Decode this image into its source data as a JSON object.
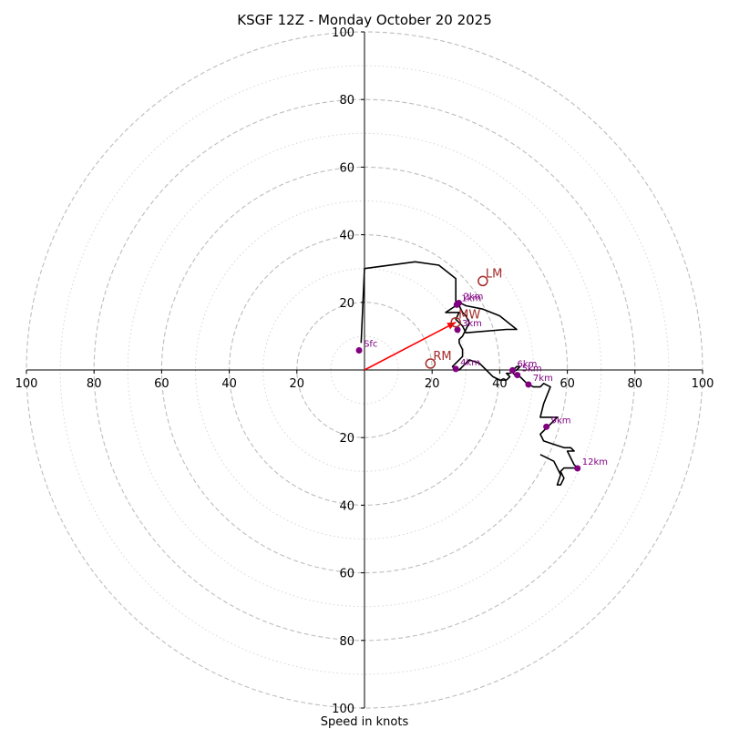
{
  "chart_data": {
    "type": "hodograph",
    "title": "KSGF 12Z - Monday October 20 2025",
    "xlabel": "Speed in knots",
    "max_speed": 100,
    "ring_major_step": 20,
    "ring_minor_step": 10,
    "tick_labels": {
      "top": [
        "20",
        "40",
        "60",
        "80",
        "100"
      ],
      "bottom": [
        "20",
        "40",
        "60",
        "80",
        "100"
      ],
      "left": [
        "20",
        "40",
        "60",
        "80",
        "100"
      ],
      "right": [
        "20",
        "40",
        "60",
        "80",
        "100"
      ]
    },
    "tick_values": [
      20,
      40,
      60,
      80,
      100
    ],
    "trace": [
      [
        -1,
        8
      ],
      [
        0,
        30
      ],
      [
        15,
        32
      ],
      [
        22,
        31
      ],
      [
        27,
        27
      ],
      [
        27,
        20
      ],
      [
        28,
        20
      ],
      [
        30,
        19
      ],
      [
        35,
        18
      ],
      [
        40,
        16
      ],
      [
        45,
        12
      ],
      [
        42,
        12
      ],
      [
        30,
        11
      ],
      [
        29,
        13
      ],
      [
        28,
        14
      ],
      [
        27,
        15
      ],
      [
        28,
        17
      ],
      [
        27,
        17
      ],
      [
        26,
        17
      ],
      [
        25,
        17
      ],
      [
        24,
        17
      ],
      [
        27,
        19
      ],
      [
        28,
        19
      ],
      [
        29,
        17
      ],
      [
        30,
        16
      ],
      [
        31,
        14
      ],
      [
        30,
        12
      ],
      [
        29,
        10
      ],
      [
        28,
        9
      ],
      [
        28,
        8
      ],
      [
        29,
        6
      ],
      [
        29,
        4
      ],
      [
        28,
        3
      ],
      [
        27,
        2
      ],
      [
        26,
        1
      ],
      [
        27,
        0
      ],
      [
        28,
        0
      ],
      [
        30,
        2
      ],
      [
        31,
        3
      ],
      [
        34,
        2
      ],
      [
        36,
        0
      ],
      [
        38,
        -2
      ],
      [
        40,
        -3
      ],
      [
        42,
        -3
      ],
      [
        43,
        -2
      ],
      [
        42,
        -1
      ],
      [
        43,
        -1
      ],
      [
        45,
        0
      ],
      [
        46,
        1
      ],
      [
        45,
        1
      ],
      [
        44,
        0
      ],
      [
        44,
        -1
      ],
      [
        45,
        -2
      ],
      [
        46,
        -2
      ],
      [
        47,
        -3
      ],
      [
        48,
        -4
      ],
      [
        50,
        -5
      ],
      [
        52,
        -5
      ],
      [
        53,
        -4
      ],
      [
        55,
        -5
      ],
      [
        53,
        -10
      ],
      [
        52,
        -14
      ],
      [
        55,
        -14
      ],
      [
        57,
        -14
      ],
      [
        55,
        -16
      ],
      [
        54,
        -17
      ],
      [
        52,
        -19
      ],
      [
        53,
        -21
      ],
      [
        56,
        -22
      ],
      [
        59,
        -23
      ],
      [
        61,
        -23
      ],
      [
        62,
        -24
      ],
      [
        60,
        -24
      ],
      [
        61,
        -26
      ],
      [
        62,
        -28
      ],
      [
        63,
        -29
      ],
      [
        61,
        -29
      ],
      [
        59,
        -29
      ],
      [
        58,
        -30
      ],
      [
        59,
        -32
      ],
      [
        58,
        -34
      ],
      [
        57,
        -34
      ],
      [
        58,
        -31
      ],
      [
        56,
        -27
      ],
      [
        52,
        -25
      ]
    ],
    "height_labels": [
      {
        "label": "Sfc",
        "u": -1.6,
        "v": 5.8
      },
      {
        "label": "1km",
        "u": 27.3,
        "v": 19.3
      },
      {
        "label": "2km",
        "u": 27.9,
        "v": 19.8
      },
      {
        "label": "3km",
        "u": 27.5,
        "v": 11.9
      },
      {
        "label": "4km",
        "u": 27.0,
        "v": 0.3
      },
      {
        "label": "5km",
        "u": 45.2,
        "v": -1.5
      },
      {
        "label": "6km",
        "u": 43.8,
        "v": -0.1
      },
      {
        "label": "7km",
        "u": 48.5,
        "v": -4.3
      },
      {
        "label": "9km",
        "u": 53.8,
        "v": -16.8
      },
      {
        "label": "12km",
        "u": 63.0,
        "v": -29.1
      }
    ],
    "motions": [
      {
        "label": "LM",
        "u": 35.0,
        "v": 26.3
      },
      {
        "label": "MW",
        "u": 27.0,
        "v": 14.1
      },
      {
        "label": "RM",
        "u": 19.5,
        "v": 1.9
      }
    ],
    "mean_wind_vector": {
      "u": 27.0,
      "v": 14.1
    },
    "colors": {
      "trace": "#000000",
      "height_points": "#800080",
      "motion": "#a52a2a",
      "vector": "#ff0000",
      "ring_major": "#bdbdbd",
      "ring_minor": "#d6d6d6",
      "axis": "#000000"
    }
  }
}
